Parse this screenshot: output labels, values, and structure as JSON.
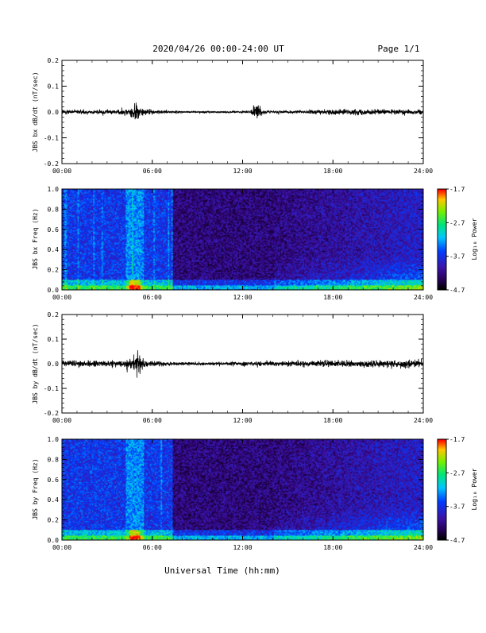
{
  "header": {
    "date_range": "2020/04/26  00:00-24:00 UT",
    "page": "Page 1/1"
  },
  "xaxis": {
    "label": "Universal Time (hh:mm)",
    "range_hours": [
      0,
      24
    ],
    "ticks": [
      0,
      6,
      12,
      18,
      24
    ],
    "tick_labels": [
      "00:00",
      "06:00",
      "12:00",
      "18:00",
      "24:00"
    ]
  },
  "chart_data": [
    {
      "type": "line",
      "id": "bx-wave",
      "ylabel": "JBS bx dB/dt (nT/sec)",
      "ylim": [
        -0.2,
        0.2
      ],
      "yticks": [
        -0.2,
        -0.1,
        0.0,
        0.1,
        0.2
      ],
      "ytick_labels": [
        "-0.2",
        "-0.1",
        "0.0",
        "0.1",
        "0.2"
      ],
      "envelope": {
        "x_hours": [
          0,
          1,
          2,
          3,
          4,
          4.5,
          4.8,
          5.0,
          5.3,
          6,
          7,
          8,
          9,
          10,
          11,
          12,
          12.5,
          13.0,
          13.3,
          14,
          15,
          16,
          17,
          18,
          19,
          20,
          21,
          22,
          23,
          24
        ],
        "amplitude": [
          0.013,
          0.012,
          0.012,
          0.012,
          0.014,
          0.02,
          0.05,
          0.045,
          0.025,
          0.013,
          0.008,
          0.006,
          0.005,
          0.005,
          0.005,
          0.006,
          0.008,
          0.045,
          0.012,
          0.007,
          0.008,
          0.01,
          0.012,
          0.014,
          0.014,
          0.015,
          0.014,
          0.014,
          0.015,
          0.015
        ],
        "min_spike": {
          "x_hours": 4.75,
          "value": -0.07
        }
      }
    },
    {
      "type": "heatmap",
      "id": "bx-spec",
      "ylabel": "JBS bx Freq (Hz)",
      "ylim": [
        0.0,
        1.0
      ],
      "yticks": [
        0.0,
        0.2,
        0.4,
        0.6,
        0.8,
        1.0
      ],
      "ytick_labels": [
        "0.0",
        "0.2",
        "0.4",
        "0.6",
        "0.8",
        "1.0"
      ],
      "colorbar": {
        "label": "Log₁₀ Power",
        "range": [
          -4.7,
          -1.7
        ],
        "ticks": [
          "-1.7",
          "-2.7",
          "-3.7",
          "-4.7"
        ]
      }
    },
    {
      "type": "line",
      "id": "by-wave",
      "ylabel": "JBS by dB/dt (nT/sec)",
      "ylim": [
        -0.2,
        0.2
      ],
      "yticks": [
        -0.2,
        -0.1,
        0.0,
        0.1,
        0.2
      ],
      "ytick_labels": [
        "-0.2",
        "-0.1",
        "0.0",
        "0.1",
        "0.2"
      ],
      "envelope": {
        "x_hours": [
          0,
          1,
          2,
          3,
          4,
          4.5,
          4.8,
          5.0,
          5.3,
          6,
          7,
          8,
          9,
          10,
          11,
          12,
          13,
          14,
          15,
          16,
          17,
          18,
          19,
          20,
          21,
          22,
          23,
          24
        ],
        "amplitude": [
          0.018,
          0.018,
          0.017,
          0.016,
          0.018,
          0.03,
          0.06,
          0.07,
          0.035,
          0.015,
          0.012,
          0.01,
          0.01,
          0.01,
          0.01,
          0.012,
          0.013,
          0.014,
          0.015,
          0.016,
          0.018,
          0.02,
          0.02,
          0.02,
          0.02,
          0.02,
          0.022,
          0.025
        ],
        "min_spike": {
          "x_hours": 4.8,
          "value": -0.11
        }
      }
    },
    {
      "type": "heatmap",
      "id": "by-spec",
      "ylabel": "JBS by Freq (Hz)",
      "ylim": [
        0.0,
        1.0
      ],
      "yticks": [
        0.0,
        0.2,
        0.4,
        0.6,
        0.8,
        1.0
      ],
      "ytick_labels": [
        "0.0",
        "0.2",
        "0.4",
        "0.6",
        "0.8",
        "1.0"
      ],
      "colorbar": {
        "label": "Log₁₀ Power",
        "range": [
          -4.7,
          -1.7
        ],
        "ticks": [
          "-1.7",
          "-2.7",
          "-3.7",
          "-4.7"
        ]
      }
    }
  ],
  "colors": {
    "line": "#000000",
    "background": "#ffffff"
  }
}
